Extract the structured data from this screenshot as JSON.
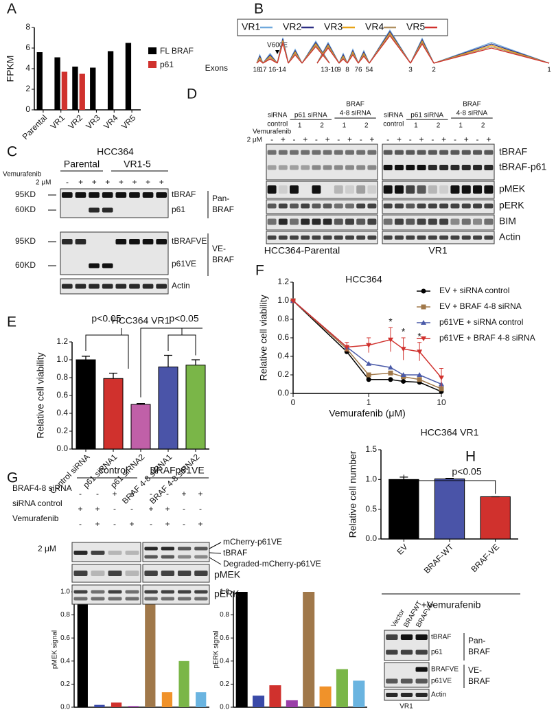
{
  "panel_letters": [
    "A",
    "B",
    "C",
    "D",
    "E",
    "F",
    "G",
    "H"
  ],
  "chart_data": [
    {
      "type": "bar",
      "ylabel": "FPKM",
      "categories": [
        "Parental",
        "VR1",
        "VR2",
        "VR3",
        "VR4",
        "VR5"
      ],
      "series": [
        {
          "name": "FL BRAF",
          "color": "#000000",
          "values": [
            5.6,
            5.1,
            4.2,
            4.1,
            5.7,
            6.5
          ]
        },
        {
          "name": "p61",
          "color": "#d0312d",
          "values": [
            null,
            3.7,
            3.5,
            null,
            null,
            null
          ]
        }
      ],
      "ylim": [
        0,
        8
      ],
      "yticks": [
        0,
        2,
        4,
        6,
        8
      ]
    },
    {
      "type": "bar",
      "title": "HCC364 VR1",
      "ylabel": "Relative cell viability",
      "categories": [
        "Control siRNA",
        "p61 siRNA1",
        "p61 siRNA2",
        "BRAF 4-8 siRNA1",
        "BRAF 4-8 siRNA2"
      ],
      "values": [
        1.0,
        0.79,
        0.5,
        0.92,
        0.94
      ],
      "errors": [
        0.04,
        0.06,
        0.01,
        0.13,
        0.06
      ],
      "colors": [
        "#000000",
        "#d0312d",
        "#c060a8",
        "#4a54a8",
        "#7ab648"
      ],
      "ylim": [
        0,
        1.2
      ],
      "yticks": [
        {
          "value": 0,
          "label": "0.0"
        },
        {
          "value": 0.2,
          "label": "0.2"
        },
        {
          "value": 0.4,
          "label": "0.4"
        },
        {
          "value": 0.6,
          "label": "0.6"
        },
        {
          "value": 0.8,
          "label": "0.8"
        },
        {
          "value": 1,
          "label": "1.0"
        },
        {
          "value": 1.2,
          "label": "1.2"
        }
      ],
      "annotations": [
        "p<0.05",
        "p<0.05"
      ]
    },
    {
      "type": "line",
      "title": "HCC364",
      "xlabel": "Vemurafenib (μM)",
      "ylabel": "Relative cell viability",
      "x": [
        0,
        0.5,
        1,
        2,
        3,
        5,
        10
      ],
      "xscale": "log",
      "xlim": [
        0,
        10
      ],
      "xticks": [
        0,
        1,
        10
      ],
      "series": [
        {
          "name": "EV + siRNA control",
          "color": "#000000",
          "marker": "circle",
          "values": [
            1.0,
            0.45,
            0.15,
            0.15,
            0.13,
            0.12,
            0.02
          ]
        },
        {
          "name": "EV + BRAF 4-8 siRNA",
          "color": "#a0784a",
          "marker": "square",
          "values": [
            1.0,
            0.48,
            0.2,
            0.22,
            0.18,
            0.15,
            0.05
          ]
        },
        {
          "name": "p61VE + siRNA control",
          "color": "#4a5aa8",
          "marker": "triangle",
          "values": [
            1.0,
            0.5,
            0.32,
            0.28,
            0.2,
            0.2,
            0.1
          ]
        },
        {
          "name": "p61VE + BRAF 4-8 siRNA",
          "color": "#d0312d",
          "marker": "triangle-down",
          "values": [
            1.0,
            0.5,
            0.52,
            0.58,
            0.48,
            0.45,
            0.17
          ],
          "errors": [
            0,
            0.05,
            0.08,
            0.13,
            0.12,
            0.1,
            0.1
          ]
        }
      ],
      "significance": [
        null,
        null,
        null,
        "*",
        "*",
        "*",
        null
      ],
      "ylim": [
        0,
        1.2
      ],
      "yticks": [
        {
          "value": 0,
          "label": "0.0"
        },
        {
          "value": 0.2,
          "label": "0.2"
        },
        {
          "value": 0.4,
          "label": "0.4"
        },
        {
          "value": 0.6,
          "label": "0.6"
        },
        {
          "value": 0.8,
          "label": "0.8"
        },
        {
          "value": 1,
          "label": "1.0"
        },
        {
          "value": 1.2,
          "label": "1.2"
        }
      ]
    },
    {
      "type": "bar",
      "title": "HCC364 VR1",
      "ylabel": "Relative cell number",
      "xlabel": "+Vemurafenib",
      "categories": [
        "EV",
        "BRAF-WT",
        "BRAF-VE"
      ],
      "values": [
        1.0,
        1.01,
        0.71
      ],
      "errors": [
        0.04,
        0.01,
        0
      ],
      "colors": [
        "#000000",
        "#4a54a8",
        "#d0312d"
      ],
      "ylim": [
        0,
        1.5
      ],
      "yticks": [
        {
          "value": 0,
          "label": "0.0"
        },
        {
          "value": 0.5,
          "label": "0.5"
        },
        {
          "value": 1,
          "label": "1.0"
        },
        {
          "value": 1.5,
          "label": "1.5"
        }
      ],
      "annotations": [
        "p<0.05"
      ]
    },
    {
      "type": "bar",
      "ylabel": "pMEK signal",
      "categories": [
        null,
        null,
        null,
        null,
        null,
        null,
        null,
        null
      ],
      "values": [
        1.0,
        0.02,
        0.04,
        0.01,
        1.0,
        0.13,
        0.4,
        0.13
      ],
      "colors": [
        "#000000",
        "#3a4aa8",
        "#d0312d",
        "#9a3fa8",
        "#a0784a",
        "#f0922a",
        "#7ab648",
        "#6ab4e0"
      ],
      "ylim": [
        0,
        1
      ],
      "yticks": [
        {
          "value": 0,
          "label": "0.0"
        },
        {
          "value": 0.2,
          "label": "0.2"
        },
        {
          "value": 0.4,
          "label": "0.4"
        },
        {
          "value": 0.6,
          "label": "0.6"
        },
        {
          "value": 0.8,
          "label": "0.8"
        },
        {
          "value": 1,
          "label": "1.0"
        }
      ]
    },
    {
      "type": "bar",
      "ylabel": "pERK signal",
      "categories": [
        null,
        null,
        null,
        null,
        null,
        null,
        null,
        null
      ],
      "values": [
        1.0,
        0.1,
        0.19,
        0.06,
        1.0,
        0.18,
        0.33,
        0.23
      ],
      "colors": [
        "#000000",
        "#3a4aa8",
        "#d0312d",
        "#9a3fa8",
        "#a0784a",
        "#f0922a",
        "#7ab648",
        "#6ab4e0"
      ],
      "ylim": [
        0,
        1
      ],
      "yticks": [
        {
          "value": 0,
          "label": "0.0"
        },
        {
          "value": 0.2,
          "label": "0.2"
        },
        {
          "value": 0.4,
          "label": "0.4"
        },
        {
          "value": 0.6,
          "label": "0.6"
        },
        {
          "value": 0.8,
          "label": "0.8"
        },
        {
          "value": 1,
          "label": "1.0"
        }
      ]
    }
  ],
  "splice": {
    "legend": [
      {
        "name": "VR1",
        "color": "#6fa8dc"
      },
      {
        "name": "VR2",
        "color": "#2b2e83"
      },
      {
        "name": "VR3",
        "color": "#e8a317"
      },
      {
        "name": "VR4",
        "color": "#b09060"
      },
      {
        "name": "VR5",
        "color": "#d0312d"
      }
    ],
    "mutation": "V600E",
    "exons_label": "Exons",
    "exons": [
      "18",
      "17",
      "16-14",
      "13-10",
      "9",
      "8",
      "76",
      "54",
      "3",
      "2",
      "1"
    ]
  },
  "blot_c": {
    "title": "HCC364",
    "treatment": "Vemurafenib",
    "dose": "2 μM",
    "groups": [
      "Parental",
      "VR1-5"
    ],
    "signs": [
      "-",
      "+",
      "+",
      "+",
      "+",
      "+",
      "+",
      "+"
    ],
    "markers": [
      "95KD",
      "60KD",
      "95KD",
      "60KD"
    ],
    "bands": [
      "tBRAF",
      "p61",
      "tBRAFVE",
      "p61VE",
      "Actin"
    ],
    "brackets": [
      [
        "Pan-",
        "BRAF"
      ],
      [
        "VE-",
        "BRAF"
      ]
    ]
  },
  "blot_d": {
    "headers": [
      "siRNA",
      "control",
      "p61 siRNA",
      "1",
      "2",
      "BRAF",
      "4-8 siRNA",
      "1",
      "2"
    ],
    "treatment": "Vemurafenib",
    "dose": "2 μM",
    "signs": [
      "-",
      "+",
      "-",
      "+",
      "-",
      "+",
      "-",
      "+",
      "-",
      "+"
    ],
    "bands": [
      "tBRAF",
      "tBRAF-p61",
      "pMEK",
      "pERK",
      "BIM",
      "Actin"
    ],
    "footers": [
      "HCC364-Parental",
      "VR1"
    ]
  },
  "blot_g": {
    "groups": [
      "control",
      "BRAFp61VE"
    ],
    "rows": [
      {
        "label": "BRAF4-8 siRNA",
        "signs": [
          "-",
          "-",
          "+",
          "+",
          "-",
          "-",
          "+",
          "+"
        ]
      },
      {
        "label": "siRNA control",
        "signs": [
          "+",
          "+",
          "-",
          "-",
          "+",
          "+",
          "-",
          "-"
        ]
      },
      {
        "label": "Vemurafenib",
        "signs": [
          "-",
          "+",
          "-",
          "+",
          "-",
          "+",
          "-",
          "+"
        ]
      }
    ],
    "dose": "2 μM",
    "bands": [
      "mCherry-p61VE",
      "tBRAF",
      "Degraded-mCherry-p61VE",
      "pMEK",
      "pERK"
    ]
  },
  "blot_h": {
    "lanes": [
      "Vector",
      "BRAFWT",
      "BRAFVE"
    ],
    "bands": [
      "tBRAF",
      "p61",
      "BRAFVE",
      "p61VE",
      "Actin"
    ],
    "brackets": [
      [
        "Pan-",
        "BRAF"
      ],
      [
        "VE-",
        "BRAF"
      ]
    ],
    "footer": "VR1"
  }
}
